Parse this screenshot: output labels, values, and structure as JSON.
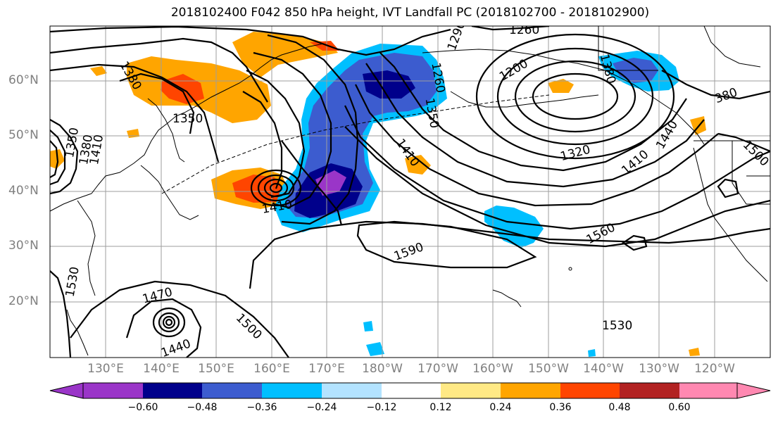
{
  "title": "2018102400 F042 850 hPa height, IVT Landfall PC (2018102700 - 2018102900)",
  "lat_ticks": [
    "60°N",
    "50°N",
    "40°N",
    "30°N",
    "20°N"
  ],
  "lon_ticks": [
    "130°E",
    "140°E",
    "150°E",
    "160°E",
    "170°E",
    "180°W",
    "170°W",
    "160°W",
    "150°W",
    "140°W",
    "130°W",
    "120°W"
  ],
  "colorbar": {
    "tick_labels": [
      "−0.60",
      "−0.48",
      "−0.36",
      "−0.24",
      "−0.12",
      "0.12",
      "0.24",
      "0.36",
      "0.48",
      "0.60"
    ],
    "colors": [
      "#9a35c8",
      "#00008b",
      "#3c5ccf",
      "#00bfff",
      "#b3e3ff",
      "#ffffff",
      "#ffe985",
      "#ffa500",
      "#ff4500",
      "#b22222",
      "#ff88b1"
    ]
  },
  "contour_labels": [
    "1260",
    "1290",
    "1260",
    "1350",
    "1200",
    "1380",
    "380",
    "1380",
    "1350",
    "1350",
    "1380",
    "1410",
    "1410",
    "1410",
    "1320",
    "1410",
    "1440",
    "1500",
    "1560",
    "1590",
    "1530",
    "1470",
    "1500",
    "1440",
    "1530"
  ]
}
